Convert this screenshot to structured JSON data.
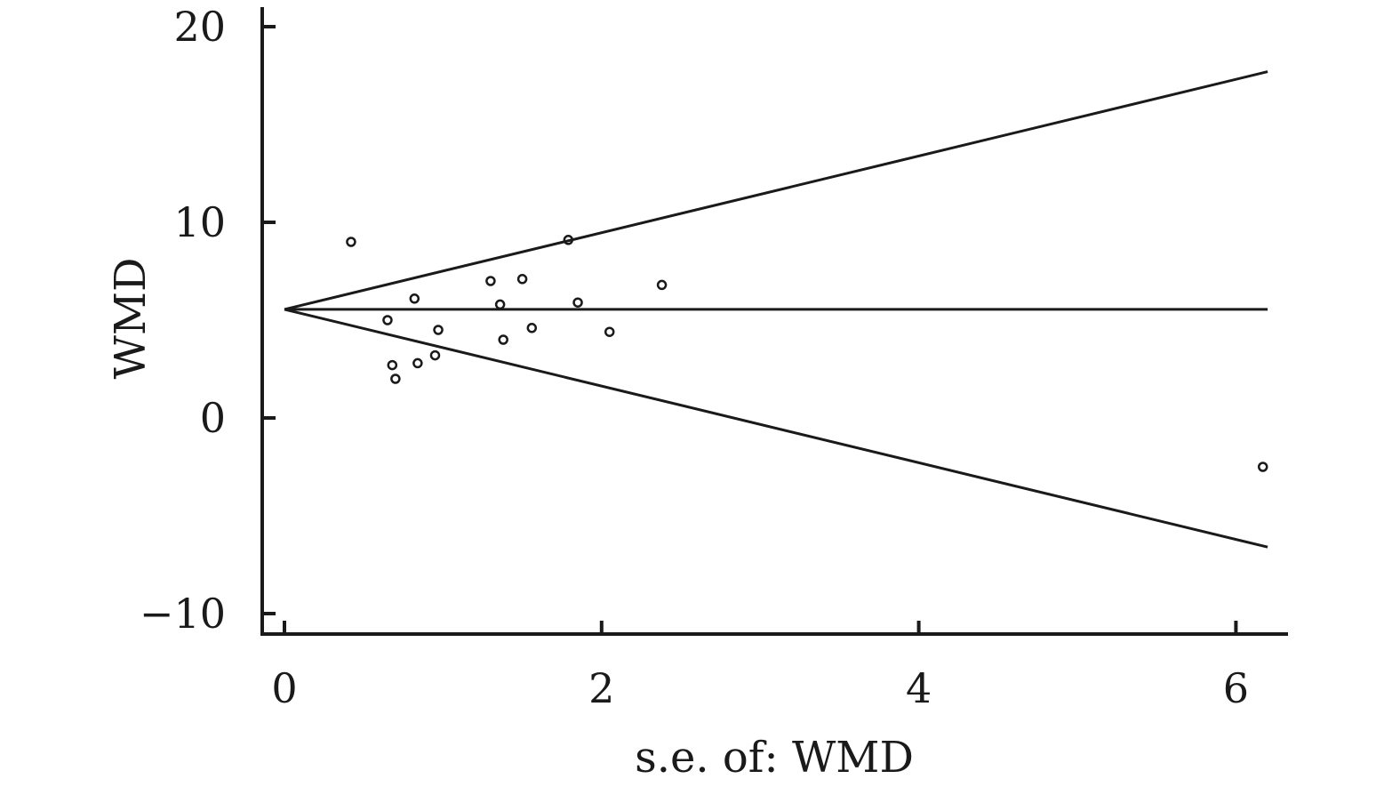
{
  "chart_data": {
    "type": "scatter",
    "title": "",
    "xlabel": "s.e. of: WMD",
    "ylabel": "WMD",
    "xlim": [
      0,
      6.2
    ],
    "ylim": [
      -10,
      20
    ],
    "xticks": [
      0,
      2,
      4,
      6
    ],
    "xtick_labels": [
      "0",
      "2",
      "4",
      "6"
    ],
    "yticks": [
      -10,
      0,
      10,
      20
    ],
    "ytick_labels": [
      "−10",
      "0",
      "10",
      "20"
    ],
    "grid": false,
    "legend": "none",
    "pooled_estimate": 5.55,
    "pseudo_ci_lines": [
      {
        "x": [
          0,
          6.2
        ],
        "y": [
          5.55,
          17.7
        ]
      },
      {
        "x": [
          0,
          6.2
        ],
        "y": [
          5.55,
          -6.6
        ]
      },
      {
        "x": [
          0,
          6.2
        ],
        "y": [
          5.55,
          5.55
        ]
      }
    ],
    "points": [
      {
        "x": 0.42,
        "y": 9.0
      },
      {
        "x": 0.65,
        "y": 5.0
      },
      {
        "x": 0.68,
        "y": 2.7
      },
      {
        "x": 0.7,
        "y": 2.0
      },
      {
        "x": 0.82,
        "y": 6.1
      },
      {
        "x": 0.84,
        "y": 2.8
      },
      {
        "x": 0.95,
        "y": 3.2
      },
      {
        "x": 0.97,
        "y": 4.5
      },
      {
        "x": 1.3,
        "y": 7.0
      },
      {
        "x": 1.36,
        "y": 5.8
      },
      {
        "x": 1.38,
        "y": 4.0
      },
      {
        "x": 1.5,
        "y": 7.1
      },
      {
        "x": 1.56,
        "y": 4.6
      },
      {
        "x": 1.79,
        "y": 9.1
      },
      {
        "x": 1.85,
        "y": 5.9
      },
      {
        "x": 2.05,
        "y": 4.4
      },
      {
        "x": 2.38,
        "y": 6.8
      },
      {
        "x": 6.17,
        "y": -2.5
      }
    ]
  }
}
